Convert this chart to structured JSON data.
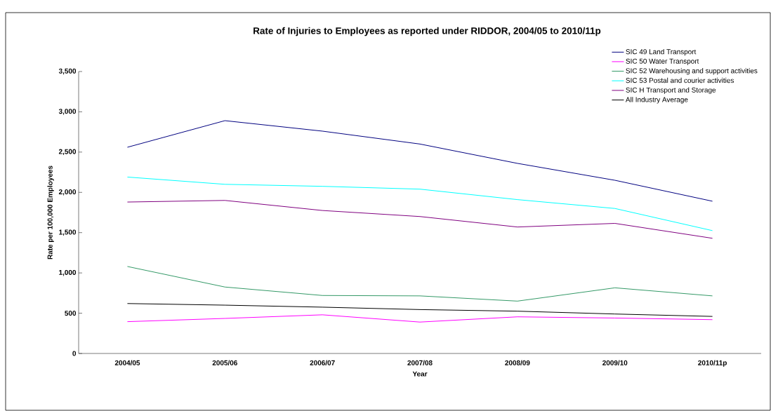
{
  "chart_data": {
    "type": "line",
    "title": "Rate of Injuries to Employees as reported under RIDDOR, 2004/05 to 2010/11p",
    "xlabel": "Year",
    "ylabel": "Rate per 100,000 Employees",
    "categories": [
      "2004/05",
      "2005/06",
      "2006/07",
      "2007/08",
      "2008/09",
      "2009/10",
      "2010/11p"
    ],
    "series": [
      {
        "name": "SIC 49 Land Transport",
        "color": "#000080",
        "values": [
          2560,
          2890,
          2760,
          2600,
          2360,
          2150,
          1890
        ]
      },
      {
        "name": "SIC 50 Water Transport",
        "color": "#ff00ff",
        "values": [
          395,
          435,
          480,
          390,
          455,
          440,
          420
        ]
      },
      {
        "name": "SIC 52 Warehousing and support activities",
        "color": "#339966",
        "values": [
          1080,
          825,
          720,
          715,
          650,
          815,
          715
        ]
      },
      {
        "name": "SIC 53 Postal and courier activities",
        "color": "#00ffff",
        "values": [
          2190,
          2100,
          2075,
          2040,
          1910,
          1800,
          1525
        ]
      },
      {
        "name": "SIC H Transport and Storage",
        "color": "#800080",
        "values": [
          1880,
          1900,
          1775,
          1700,
          1570,
          1615,
          1430
        ]
      },
      {
        "name": "All Industry Average",
        "color": "#000000",
        "values": [
          620,
          600,
          575,
          545,
          525,
          490,
          460
        ]
      }
    ],
    "ylim": [
      0,
      3500
    ],
    "yticks": [
      {
        "value": 0,
        "label": "0"
      },
      {
        "value": 500,
        "label": "500"
      },
      {
        "value": 1000,
        "label": "1,000"
      },
      {
        "value": 1500,
        "label": "1,500"
      },
      {
        "value": 2000,
        "label": "2,000"
      },
      {
        "value": 2500,
        "label": "2,500"
      },
      {
        "value": 3000,
        "label": "3,000"
      },
      {
        "value": 3500,
        "label": "3,500"
      }
    ],
    "grid": false,
    "legend": "top right",
    "marker": "none",
    "line_style": "solid"
  }
}
